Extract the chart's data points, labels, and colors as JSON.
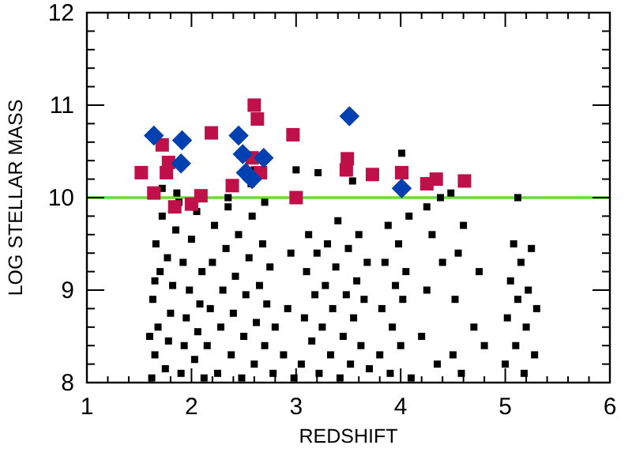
{
  "chart_data": {
    "type": "scatter",
    "xlabel": "REDSHIFT",
    "ylabel": "LOG STELLAR MASS",
    "xlim": [
      1,
      6
    ],
    "ylim": [
      8,
      12
    ],
    "xticks": [
      1,
      {
        "value": 1.2,
        "label": null
      },
      {
        "value": 1.4,
        "label": null
      },
      {
        "value": 1.6,
        "label": null
      },
      {
        "value": 1.8,
        "label": null
      },
      2,
      {
        "value": 2.2,
        "label": null
      },
      {
        "value": 2.4,
        "label": null
      },
      {
        "value": 2.6,
        "label": null
      },
      {
        "value": 2.8,
        "label": null
      },
      3,
      {
        "value": 3.2,
        "label": null
      },
      {
        "value": 3.4,
        "label": null
      },
      {
        "value": 3.6,
        "label": null
      },
      {
        "value": 3.8,
        "label": null
      },
      4,
      {
        "value": 4.2,
        "label": null
      },
      {
        "value": 4.4,
        "label": null
      },
      {
        "value": 4.6,
        "label": null
      },
      {
        "value": 4.8,
        "label": null
      },
      5,
      {
        "value": 5.2,
        "label": null
      },
      {
        "value": 5.4,
        "label": null
      },
      {
        "value": 5.6,
        "label": null
      },
      {
        "value": 5.8,
        "label": null
      },
      6
    ],
    "yticks": [
      8,
      {
        "value": 8.2,
        "label": null
      },
      {
        "value": 8.4,
        "label": null
      },
      {
        "value": 8.6,
        "label": null
      },
      {
        "value": 8.8,
        "label": null
      },
      9,
      {
        "value": 9.2,
        "label": null
      },
      {
        "value": 9.4,
        "label": null
      },
      {
        "value": 9.6,
        "label": null
      },
      {
        "value": 9.8,
        "label": null
      },
      10,
      {
        "value": 10.2,
        "label": null
      },
      {
        "value": 10.4,
        "label": null
      },
      {
        "value": 10.6,
        "label": null
      },
      {
        "value": 10.8,
        "label": null
      },
      11,
      {
        "value": 11.2,
        "label": null
      },
      {
        "value": 11.4,
        "label": null
      },
      {
        "value": 11.6,
        "label": null
      },
      {
        "value": 11.8,
        "label": null
      },
      12
    ],
    "grid": false,
    "ref_lines": [
      {
        "axis": "y",
        "value": 10,
        "color": "#66dd33"
      }
    ],
    "series": [
      {
        "color": "#000000",
        "marker": "square",
        "x": [
          1.62,
          1.65,
          1.68,
          1.63,
          1.7,
          1.66,
          1.72,
          1.75,
          1.78,
          1.8,
          1.82,
          1.77,
          1.85,
          1.88,
          1.9,
          1.93,
          1.95,
          1.98,
          1.92,
          2.0,
          2.03,
          2.06,
          2.08,
          2.1,
          2.05,
          1.6,
          1.65,
          1.72,
          1.86,
          2.12,
          2.15,
          2.18,
          2.2,
          2.22,
          2.25,
          2.28,
          2.3,
          2.33,
          2.35,
          2.38,
          2.4,
          2.42,
          2.45,
          2.48,
          2.5,
          2.52,
          2.55,
          2.58,
          2.6,
          2.62,
          2.65,
          2.68,
          2.7,
          2.72,
          2.75,
          2.78,
          2.8,
          2.57,
          2.6,
          2.35,
          2.7,
          2.88,
          2.92,
          2.95,
          2.98,
          3.0,
          3.21,
          3.05,
          3.08,
          3.1,
          3.12,
          3.15,
          3.18,
          3.2,
          3.22,
          3.25,
          3.28,
          3.3,
          3.33,
          3.35,
          3.38,
          3.4,
          3.42,
          3.45,
          3.48,
          3.5,
          3.52,
          3.55,
          3.58,
          3.6,
          3.62,
          3.65,
          3.68,
          3.7,
          3.54,
          3.8,
          3.82,
          3.85,
          3.88,
          3.9,
          3.92,
          3.95,
          3.98,
          4.0,
          4.02,
          4.05,
          4.08,
          4.1,
          4.01,
          4.2,
          4.25,
          4.3,
          4.35,
          4.4,
          4.25,
          4.38,
          4.5,
          4.52,
          4.55,
          4.58,
          4.6,
          4.48,
          4.7,
          4.75,
          4.8,
          5.0,
          5.02,
          5.05,
          5.08,
          5.1,
          5.12,
          5.15,
          5.18,
          5.2,
          5.22,
          5.25,
          5.28,
          5.3,
          5.12
        ],
        "values": [
          8.05,
          8.3,
          8.6,
          8.9,
          9.2,
          9.5,
          9.8,
          8.15,
          8.45,
          8.75,
          9.05,
          9.35,
          9.65,
          9.95,
          8.1,
          8.4,
          8.7,
          9.0,
          9.3,
          9.55,
          8.25,
          8.55,
          8.85,
          9.2,
          9.85,
          8.5,
          9.1,
          10.1,
          10.05,
          8.05,
          8.4,
          8.8,
          9.3,
          9.7,
          8.1,
          8.6,
          9.0,
          9.45,
          9.9,
          8.3,
          8.75,
          9.15,
          9.6,
          8.05,
          8.5,
          8.95,
          9.35,
          9.8,
          8.2,
          8.65,
          9.05,
          9.5,
          8.4,
          8.85,
          9.25,
          8.1,
          8.6,
          10.15,
          10.3,
          10.0,
          9.95,
          8.3,
          8.8,
          9.4,
          8.05,
          10.3,
          10.27,
          8.2,
          8.7,
          9.2,
          9.6,
          8.45,
          8.95,
          9.4,
          8.1,
          8.6,
          9.05,
          9.5,
          8.3,
          8.8,
          9.25,
          9.75,
          8.05,
          8.5,
          8.95,
          9.45,
          8.2,
          8.7,
          9.1,
          9.6,
          8.4,
          8.9,
          9.3,
          8.15,
          10.18,
          8.3,
          8.8,
          9.3,
          9.7,
          8.1,
          8.6,
          9.05,
          9.5,
          8.4,
          8.9,
          9.2,
          9.8,
          8.05,
          10.48,
          8.5,
          9.0,
          9.6,
          8.2,
          9.3,
          9.9,
          10.0,
          8.3,
          8.9,
          9.4,
          8.1,
          9.7,
          10.05,
          8.6,
          9.2,
          8.4,
          8.2,
          8.7,
          9.1,
          9.5,
          8.4,
          8.9,
          9.3,
          8.1,
          8.6,
          9.0,
          9.45,
          8.3,
          8.8,
          10.0
        ]
      },
      {
        "color": "#c0104a",
        "marker": "square",
        "x": [
          1.52,
          1.64,
          1.72,
          1.78,
          1.76,
          1.84,
          2.0,
          2.09,
          2.19,
          2.39,
          2.6,
          2.63,
          2.58,
          2.66,
          2.97,
          3.0,
          3.49,
          3.48,
          3.73,
          4.01,
          4.25,
          4.34,
          4.61
        ],
        "values": [
          10.27,
          10.05,
          10.57,
          10.38,
          10.27,
          9.9,
          9.93,
          10.02,
          10.7,
          10.13,
          11.0,
          10.85,
          10.43,
          10.27,
          10.68,
          10.0,
          10.42,
          10.3,
          10.25,
          10.27,
          10.15,
          10.2,
          10.18
        ]
      },
      {
        "color": "#0040b0",
        "marker": "diamond",
        "x": [
          1.64,
          1.91,
          1.9,
          2.45,
          2.49,
          2.69,
          2.52,
          2.58,
          3.51,
          4.01
        ],
        "values": [
          10.67,
          10.62,
          10.37,
          10.67,
          10.47,
          10.43,
          10.27,
          10.2,
          10.88,
          10.1
        ]
      }
    ]
  }
}
